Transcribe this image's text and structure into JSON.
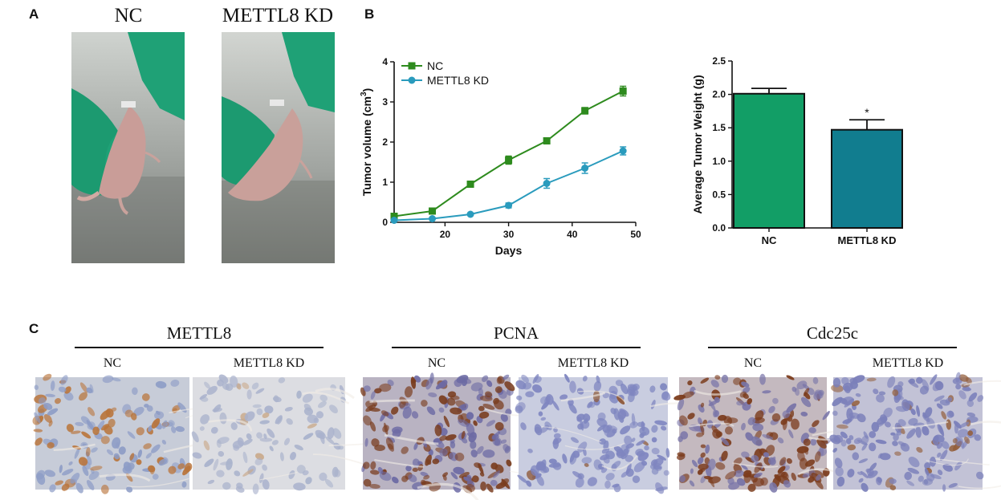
{
  "panels": {
    "a_letter": "A",
    "b_letter": "B",
    "c_letter": "C"
  },
  "panel_a": {
    "label_nc": "NC",
    "label_kd": "METTL8 KD"
  },
  "panel_c": {
    "groups": [
      {
        "title": "METTL8",
        "left": "NC",
        "right": "METTL8 KD"
      },
      {
        "title": "PCNA",
        "left": "NC",
        "right": "METTL8 KD"
      },
      {
        "title": "Cdc25c",
        "left": "NC",
        "right": "METTL8 KD"
      }
    ]
  },
  "colors": {
    "nc_green": "#2e8b1e",
    "kd_teal": "#2a9bbd",
    "bar_nc": "#129e66",
    "bar_kd": "#117d8f",
    "glove": "#1fa176"
  },
  "chart_data": [
    {
      "type": "line",
      "xlabel": "Days",
      "ylabel_main": "Tumor volume (cm",
      "ylabel_sup": "3",
      "ylabel_close": ")",
      "xlim": [
        12,
        50
      ],
      "ylim": [
        0,
        4
      ],
      "xticks": [
        20,
        30,
        40,
        50
      ],
      "yticks": [
        0,
        1,
        2,
        3,
        4
      ],
      "legend_position": "top-left",
      "series": [
        {
          "name": "NC",
          "color": "#2e8b1e",
          "marker": "square",
          "x": [
            12,
            18,
            24,
            30,
            36,
            42,
            48
          ],
          "y": [
            0.15,
            0.28,
            0.95,
            1.55,
            2.03,
            2.78,
            3.27
          ],
          "err": [
            0.04,
            0.05,
            0.07,
            0.1,
            0.07,
            0.08,
            0.12
          ]
        },
        {
          "name": "METTL8 KD",
          "color": "#2a9bbd",
          "marker": "circle",
          "x": [
            12,
            18,
            24,
            30,
            36,
            42,
            48
          ],
          "y": [
            0.05,
            0.09,
            0.2,
            0.42,
            0.97,
            1.35,
            1.78
          ],
          "err": [
            0.02,
            0.03,
            0.03,
            0.06,
            0.12,
            0.13,
            0.1
          ]
        }
      ]
    },
    {
      "type": "bar",
      "ylabel": "Average Tumor Weight (g)",
      "categories": [
        "NC",
        "METTL8 KD"
      ],
      "values": [
        2.01,
        1.47
      ],
      "err": [
        0.08,
        0.15
      ],
      "colors": [
        "#129e66",
        "#117d8f"
      ],
      "ylim": [
        0,
        2.5
      ],
      "yticks": [
        "0.0",
        "0.5",
        "1.0",
        "1.5",
        "2.0",
        "2.5"
      ],
      "annotations": [
        "",
        "*"
      ]
    }
  ]
}
